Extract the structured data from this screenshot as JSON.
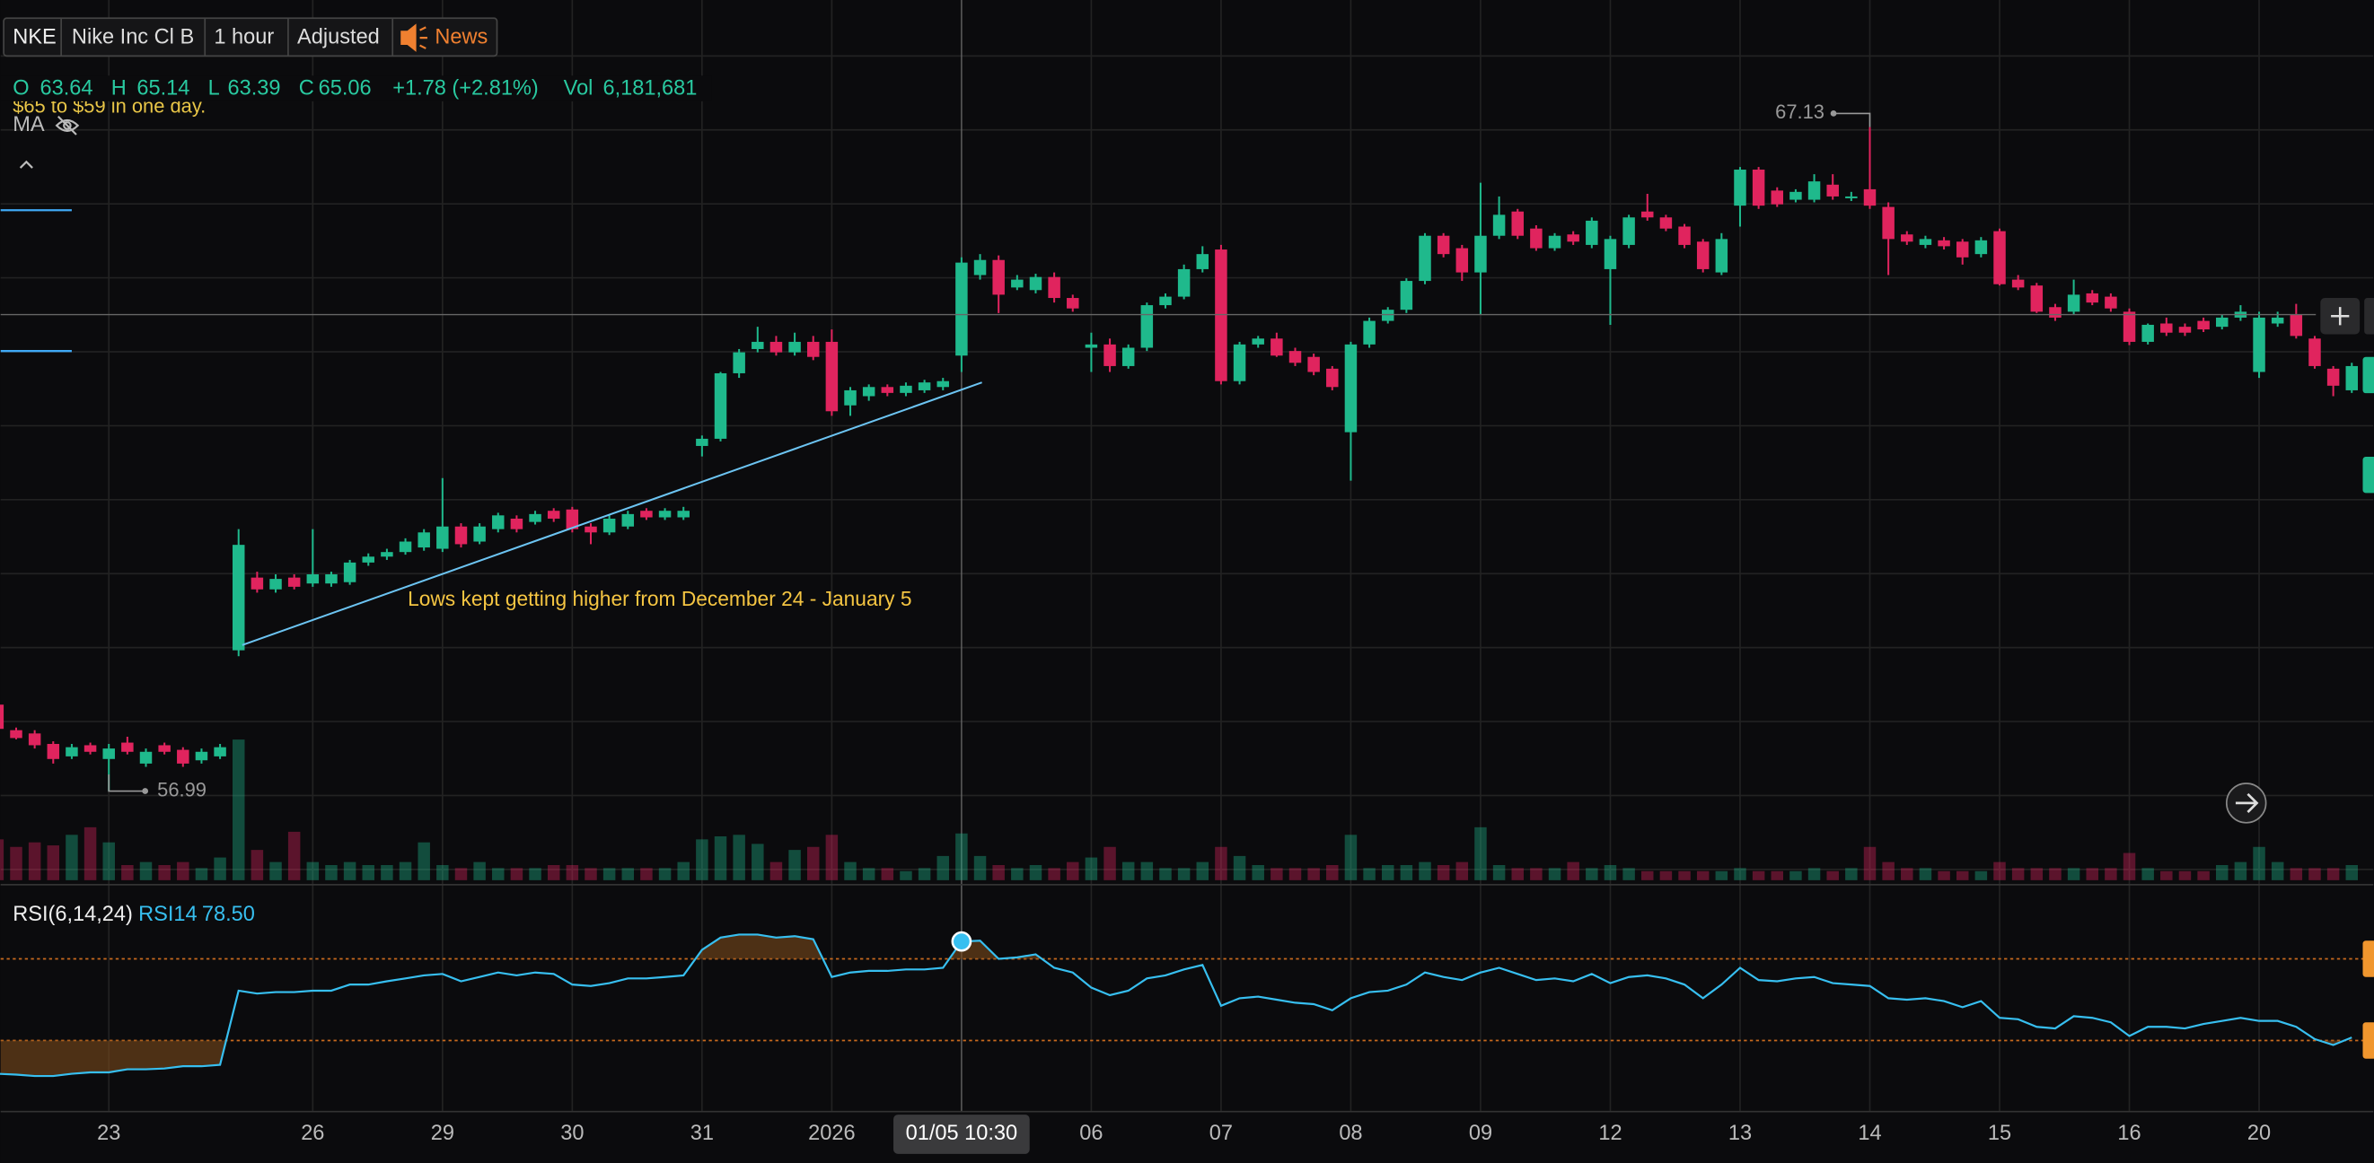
{
  "toolbar": {
    "symbol": "NKE",
    "name": "Nike Inc Cl B",
    "interval": "1 hour",
    "adjustment": "Adjusted",
    "news": "News"
  },
  "legend": {
    "o_label": "O",
    "h_label": "H",
    "l_label": "L",
    "c_label": "C",
    "change": "+1.78 (+2.81%)",
    "vol_label": "Vol",
    "vol": "6,181,681",
    "note": "$65 to $59 in one day.",
    "ma": "MA"
  },
  "rsi_legend": {
    "name": "RSI(6,14,24)",
    "label": "RSI14",
    "value": "78.50"
  },
  "chart_data": {
    "type": "candlestick",
    "categories": [
      null,
      null,
      null,
      null,
      null,
      null,
      "23",
      null,
      null,
      null,
      null,
      null,
      null,
      null,
      null,
      null,
      null,
      "26",
      null,
      null,
      null,
      null,
      null,
      null,
      "29",
      null,
      null,
      null,
      null,
      null,
      null,
      "30",
      null,
      null,
      null,
      null,
      null,
      null,
      "31",
      null,
      null,
      null,
      null,
      null,
      null,
      "2026",
      null,
      null,
      null,
      null,
      null,
      null,
      "01/05 10:30",
      null,
      null,
      null,
      null,
      null,
      null,
      "06",
      null,
      null,
      null,
      null,
      null,
      null,
      "07",
      null,
      null,
      null,
      null,
      null,
      null,
      "08",
      null,
      null,
      null,
      null,
      null,
      null,
      "09",
      null,
      null,
      null,
      null,
      null,
      null,
      "12",
      null,
      null,
      null,
      null,
      null,
      null,
      "13",
      null,
      null,
      null,
      null,
      null,
      null,
      "14",
      null,
      null,
      null,
      null,
      null,
      null,
      "15",
      null,
      null,
      null,
      null,
      null,
      null,
      "16",
      null,
      null,
      null,
      null,
      null,
      null,
      "20",
      null,
      null,
      null,
      null,
      null
    ],
    "open": [
      58.31,
      57.92,
      57.87,
      57.71,
      57.52,
      57.69,
      57.48,
      57.73,
      57.41,
      57.69,
      57.62,
      57.46,
      57.52,
      59.14,
      60.25,
      60.07,
      60.25,
      60.16,
      60.16,
      60.18,
      60.48,
      60.57,
      60.64,
      60.71,
      60.69,
      61.03,
      60.8,
      60.99,
      61.15,
      61.1,
      61.27,
      61.29,
      61.03,
      60.94,
      61.03,
      61.27,
      61.17,
      61.17,
      62.26,
      62.37,
      63.37,
      63.74,
      63.85,
      63.69,
      63.85,
      63.85,
      62.88,
      63.02,
      63.16,
      63.07,
      63.11,
      63.16,
      63.64,
      64.87,
      65.1,
      64.68,
      64.64,
      64.84,
      64.52,
      63.76,
      63.81,
      63.48,
      63.76,
      64.41,
      64.54,
      64.96,
      65.26,
      63.25,
      63.81,
      63.9,
      63.71,
      63.62,
      63.44,
      62.47,
      63.81,
      64.17,
      64.34,
      64.78,
      65.47,
      65.28,
      64.91,
      65.47,
      65.84,
      65.58,
      65.28,
      65.49,
      65.33,
      64.96,
      65.33,
      65.84,
      65.75,
      65.61,
      65.38,
      64.91,
      65.93,
      66.48,
      66.16,
      66.02,
      66.02,
      66.25,
      66.05,
      66.18,
      65.91,
      65.49,
      65.33,
      65.4,
      65.38,
      65.19,
      65.54,
      64.8,
      64.71,
      64.38,
      64.31,
      64.59,
      64.54,
      64.31,
      63.85,
      64.13,
      64.08,
      64.17,
      64.08,
      64.22,
      63.39,
      64.13,
      64.27,
      63.9,
      63.44,
      63.11
    ],
    "high": [
      58.4,
      57.96,
      57.92,
      57.75,
      57.71,
      57.73,
      57.71,
      57.82,
      57.64,
      57.73,
      57.66,
      57.64,
      57.71,
      60.99,
      60.34,
      60.3,
      60.3,
      60.99,
      60.34,
      60.52,
      60.62,
      60.69,
      60.85,
      60.99,
      61.77,
      61.08,
      61.08,
      61.24,
      61.2,
      61.27,
      61.31,
      61.33,
      61.08,
      61.2,
      61.27,
      61.31,
      61.31,
      61.33,
      62.42,
      63.39,
      63.74,
      64.08,
      63.94,
      63.99,
      63.94,
      64.04,
      63.16,
      63.2,
      63.2,
      63.23,
      63.27,
      63.3,
      65.14,
      65.19,
      65.17,
      64.87,
      64.89,
      64.91,
      64.57,
      63.99,
      63.9,
      63.81,
      64.45,
      64.59,
      65.03,
      65.31,
      65.33,
      63.85,
      63.94,
      63.99,
      63.76,
      63.67,
      63.48,
      63.85,
      64.22,
      64.38,
      64.82,
      65.51,
      65.51,
      65.33,
      66.28,
      66.07,
      65.88,
      65.63,
      65.51,
      65.54,
      65.75,
      65.47,
      65.79,
      66.11,
      65.79,
      65.65,
      65.42,
      65.51,
      66.52,
      66.52,
      66.21,
      66.18,
      66.41,
      66.41,
      66.14,
      67.13,
      65.98,
      65.54,
      65.47,
      65.45,
      65.42,
      65.45,
      65.58,
      64.87,
      64.75,
      64.43,
      64.8,
      64.64,
      64.59,
      64.36,
      64.13,
      64.22,
      64.13,
      64.22,
      64.27,
      64.41,
      64.31,
      64.31,
      64.43,
      63.94,
      63.48,
      63.53
    ],
    "low": [
      57.87,
      57.78,
      57.64,
      57.41,
      57.48,
      57.55,
      56.99,
      57.55,
      57.36,
      57.55,
      57.36,
      57.41,
      57.48,
      59.05,
      60.02,
      60.02,
      60.07,
      60.11,
      60.11,
      60.14,
      60.43,
      60.52,
      60.6,
      60.66,
      60.64,
      60.71,
      60.76,
      60.94,
      60.94,
      61.06,
      61.1,
      60.94,
      60.76,
      60.9,
      60.99,
      61.13,
      61.13,
      61.13,
      62.1,
      62.33,
      63.3,
      63.69,
      63.64,
      63.64,
      63.57,
      62.72,
      62.72,
      62.95,
      63.02,
      63.02,
      63.07,
      63.11,
      63.39,
      64.8,
      64.29,
      64.64,
      64.59,
      64.45,
      64.31,
      63.39,
      63.39,
      63.44,
      63.71,
      64.36,
      64.5,
      64.91,
      63.2,
      63.2,
      63.76,
      63.62,
      63.48,
      63.34,
      63.11,
      61.73,
      63.76,
      64.13,
      64.29,
      64.73,
      65.14,
      64.78,
      64.27,
      65.42,
      65.42,
      65.24,
      65.24,
      65.33,
      65.28,
      64.11,
      65.28,
      65.7,
      65.54,
      65.28,
      64.91,
      64.87,
      65.61,
      65.88,
      65.91,
      65.98,
      65.98,
      66.02,
      66.0,
      65.88,
      64.87,
      65.33,
      65.28,
      65.26,
      65.03,
      65.14,
      64.71,
      64.64,
      64.29,
      64.17,
      64.27,
      64.41,
      64.31,
      63.8,
      63.81,
      63.94,
      63.94,
      64.0,
      64.04,
      64.17,
      63.3,
      64.08,
      63.9,
      63.44,
      63.02,
      63.07
    ],
    "close": [
      57.94,
      57.8,
      57.69,
      57.48,
      57.66,
      57.59,
      57.64,
      57.59,
      57.59,
      57.59,
      57.41,
      57.59,
      57.66,
      60.75,
      60.07,
      60.23,
      60.11,
      60.3,
      60.3,
      60.48,
      60.57,
      60.64,
      60.8,
      60.94,
      61.03,
      60.76,
      61.03,
      61.2,
      60.99,
      61.22,
      61.15,
      60.99,
      60.94,
      61.15,
      61.22,
      61.17,
      61.27,
      61.27,
      62.37,
      63.37,
      63.69,
      63.85,
      63.69,
      63.85,
      63.62,
      62.79,
      63.11,
      63.16,
      63.07,
      63.18,
      63.23,
      63.25,
      65.06,
      65.1,
      64.57,
      64.8,
      64.84,
      64.52,
      64.36,
      63.81,
      63.48,
      63.76,
      64.41,
      64.54,
      64.96,
      65.19,
      63.25,
      63.81,
      63.9,
      63.64,
      63.53,
      63.39,
      63.16,
      63.81,
      64.17,
      64.34,
      64.78,
      65.47,
      65.19,
      64.91,
      65.47,
      65.79,
      65.47,
      65.28,
      65.47,
      65.38,
      65.7,
      65.42,
      65.75,
      65.75,
      65.58,
      65.33,
      64.96,
      65.42,
      66.48,
      65.93,
      65.95,
      66.14,
      66.3,
      66.07,
      66.07,
      65.93,
      65.42,
      65.38,
      65.42,
      65.31,
      65.14,
      65.4,
      64.73,
      64.68,
      64.31,
      64.22,
      64.57,
      64.45,
      64.36,
      63.85,
      64.11,
      63.99,
      63.99,
      64.04,
      64.22,
      64.31,
      64.22,
      64.22,
      63.94,
      63.48,
      63.18,
      63.48
    ],
    "volume": [
      5400000,
      4400000,
      5000000,
      4600000,
      6000000,
      7000000,
      5000000,
      2000000,
      2400000,
      2000000,
      2400000,
      1600000,
      3000000,
      18600000,
      4000000,
      2400000,
      6400000,
      2400000,
      2000000,
      2400000,
      2000000,
      2000000,
      2400000,
      5000000,
      2000000,
      1600000,
      2400000,
      1600000,
      1600000,
      1600000,
      2000000,
      2000000,
      1600000,
      1600000,
      1600000,
      1600000,
      1600000,
      2400000,
      5400000,
      5800000,
      6000000,
      4800000,
      2400000,
      4000000,
      4400000,
      6000000,
      2400000,
      1600000,
      1600000,
      1200000,
      1600000,
      3200000,
      6181681,
      3200000,
      2000000,
      1600000,
      2000000,
      1600000,
      2400000,
      3000000,
      4400000,
      2400000,
      2400000,
      1600000,
      1600000,
      2400000,
      4400000,
      3200000,
      2000000,
      1600000,
      1600000,
      1600000,
      2000000,
      6000000,
      1600000,
      2000000,
      2000000,
      2400000,
      2000000,
      2400000,
      7000000,
      2000000,
      1600000,
      1600000,
      1600000,
      2400000,
      1600000,
      2000000,
      1600000,
      1200000,
      1200000,
      1200000,
      1200000,
      1200000,
      1600000,
      1200000,
      1200000,
      1200000,
      1600000,
      1200000,
      1600000,
      4400000,
      2400000,
      1600000,
      1600000,
      1200000,
      1200000,
      1200000,
      2400000,
      1600000,
      1600000,
      1600000,
      1600000,
      1600000,
      1600000,
      3600000,
      1600000,
      1200000,
      1200000,
      1200000,
      2000000,
      2400000,
      4400000,
      2400000,
      1600000,
      1600000,
      1600000,
      2000000
    ],
    "rsi": [
      13.7,
      13.3,
      12.6,
      12.6,
      13.7,
      14.4,
      14.4,
      15.9,
      15.9,
      16.3,
      17.4,
      17.4,
      18.1,
      54.4,
      53.0,
      53.7,
      53.7,
      54.4,
      54.4,
      57.4,
      57.4,
      59.0,
      60.4,
      61.9,
      62.6,
      59.0,
      61.1,
      63.3,
      61.9,
      63.3,
      62.6,
      57.4,
      56.7,
      58.1,
      60.4,
      60.4,
      61.1,
      61.9,
      74.4,
      80.4,
      81.9,
      81.9,
      80.4,
      81.1,
      79.6,
      61.1,
      63.3,
      64.1,
      64.1,
      64.8,
      64.8,
      65.6,
      78.5,
      78.9,
      70.0,
      70.7,
      72.2,
      65.6,
      63.3,
      55.9,
      52.2,
      54.4,
      60.4,
      61.9,
      64.8,
      67.0,
      47.0,
      50.7,
      51.5,
      50.0,
      48.5,
      47.8,
      44.8,
      50.7,
      53.7,
      54.4,
      57.4,
      63.3,
      61.1,
      59.6,
      63.3,
      65.6,
      62.6,
      59.6,
      60.4,
      59.0,
      62.6,
      58.1,
      61.1,
      61.9,
      60.4,
      57.4,
      50.7,
      57.4,
      65.6,
      59.6,
      59.0,
      60.4,
      61.1,
      58.1,
      57.4,
      56.7,
      50.7,
      50.0,
      50.7,
      49.3,
      46.3,
      49.3,
      41.1,
      40.4,
      36.7,
      35.9,
      41.9,
      41.1,
      38.9,
      32.2,
      36.7,
      36.7,
      35.9,
      38.1,
      39.6,
      41.1,
      39.6,
      39.6,
      36.7,
      30.7,
      27.8,
      31.5
    ],
    "ylim": [
      55.56,
      69.07
    ],
    "volume_ylim": [
      0,
      116400000
    ],
    "rsi_ylim": [
      0,
      100
    ],
    "rsi_bands": [
      30,
      70
    ],
    "up_color": "#1fb98c",
    "down_color": "#e0245e",
    "rsi_color": "#37bff0",
    "grid": true,
    "hover_index": 52,
    "trendline": {
      "x": [
        13.2,
        53.1
      ],
      "y": [
        59.22,
        63.23
      ],
      "color": "#6cc4f2"
    },
    "hlines": [
      65.86,
      63.71
    ],
    "annotation": "Lows kept getting higher from December 24 - January 5"
  }
}
